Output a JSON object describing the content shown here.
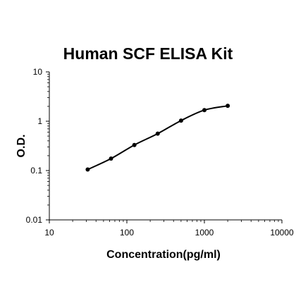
{
  "chart_data": {
    "type": "scatter",
    "title": "Human SCF ELISA Kit",
    "xlabel": "Concentration(pg/ml)",
    "ylabel": "O.D.",
    "x_scale": "log",
    "y_scale": "log",
    "xlim": [
      10,
      10000
    ],
    "ylim": [
      0.01,
      10
    ],
    "x_ticks": [
      "10",
      "100",
      "1000",
      "10000"
    ],
    "y_ticks": [
      "0.01",
      "0.1",
      "1",
      "10"
    ],
    "grid": false,
    "legend": false,
    "series": [
      {
        "points": [
          {
            "x": 31.25,
            "y": 0.105
          },
          {
            "x": 62.5,
            "y": 0.175
          },
          {
            "x": 125,
            "y": 0.33
          },
          {
            "x": 250,
            "y": 0.56
          },
          {
            "x": 500,
            "y": 1.03
          },
          {
            "x": 1000,
            "y": 1.68
          },
          {
            "x": 2000,
            "y": 2.05
          }
        ],
        "color": "#000000",
        "fit_line": true
      }
    ]
  }
}
